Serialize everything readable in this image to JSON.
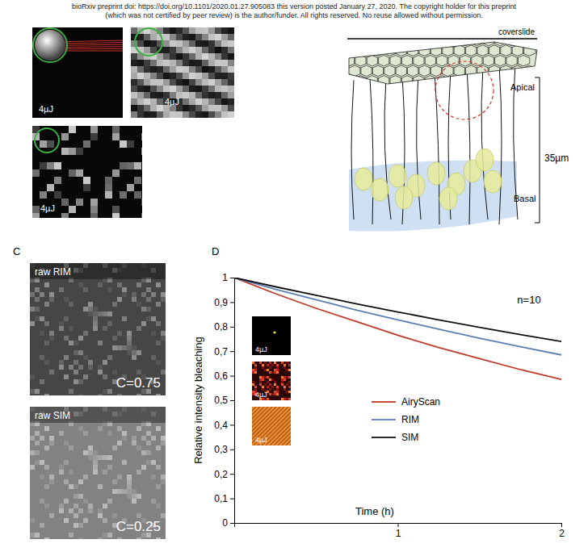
{
  "header": {
    "lines": [
      "bioRxiv preprint doi: https://doi.org/10.1101/2020.01.27.905083 this version posted January 27, 2020. The copyright holder for this preprint",
      "(which was not certified by peer review) is the author/funder. All rights reserved. No reuse allowed without permission."
    ]
  },
  "panel_a": {
    "image_labels": [
      "4µJ",
      "4µJ",
      "4µJ"
    ]
  },
  "panel_b": {
    "top": "coverslide",
    "apical": "Apical",
    "depth": "35µm",
    "basal": "Basal"
  },
  "panel_c": {
    "letter": "C",
    "images": [
      {
        "label": "raw RIM",
        "contrast": "C=0.75"
      },
      {
        "label": "raw SIM",
        "contrast": "C=0.25"
      }
    ]
  },
  "panel_d": {
    "letter": "D"
  },
  "chart_data": {
    "type": "line",
    "y_label": "Relative intensity bleaching",
    "x_label": "Time (h)",
    "annotations": [
      "n=10"
    ],
    "inset_labels": [
      "4µJ",
      "4µJ",
      "4µJ"
    ],
    "x": [
      0,
      0.25,
      0.5,
      0.75,
      1,
      1.25,
      1.5,
      1.75,
      2
    ],
    "series": [
      {
        "name": "AiryScan",
        "color": "#c0392b",
        "values": [
          1,
          0.935,
          0.875,
          0.82,
          0.765,
          0.715,
          0.67,
          0.625,
          0.585
        ]
      },
      {
        "name": "RIM",
        "color": "#5b7fb5",
        "values": [
          1,
          0.953,
          0.91,
          0.867,
          0.828,
          0.79,
          0.753,
          0.718,
          0.685
        ]
      },
      {
        "name": "SIM",
        "color": "#111111",
        "values": [
          1,
          0.963,
          0.928,
          0.893,
          0.86,
          0.828,
          0.797,
          0.768,
          0.74
        ]
      }
    ],
    "xlim": [
      0,
      2
    ],
    "ylim": [
      0,
      1
    ],
    "xticks": [
      1,
      2
    ],
    "yticks": [
      0,
      {
        "value": 0.1,
        "label": "0,1"
      },
      {
        "value": 0.2,
        "label": "0,2"
      },
      {
        "value": 0.3,
        "label": "0,3"
      },
      {
        "value": 0.4,
        "label": "0,4"
      },
      {
        "value": 0.5,
        "label": "0,5"
      },
      {
        "value": 0.6,
        "label": "0,6"
      },
      {
        "value": 0.7,
        "label": "0,7"
      },
      {
        "value": 0.8,
        "label": "0,8"
      },
      {
        "value": 0.9,
        "label": "0,9"
      },
      1
    ],
    "legend": "right",
    "grid": false
  }
}
